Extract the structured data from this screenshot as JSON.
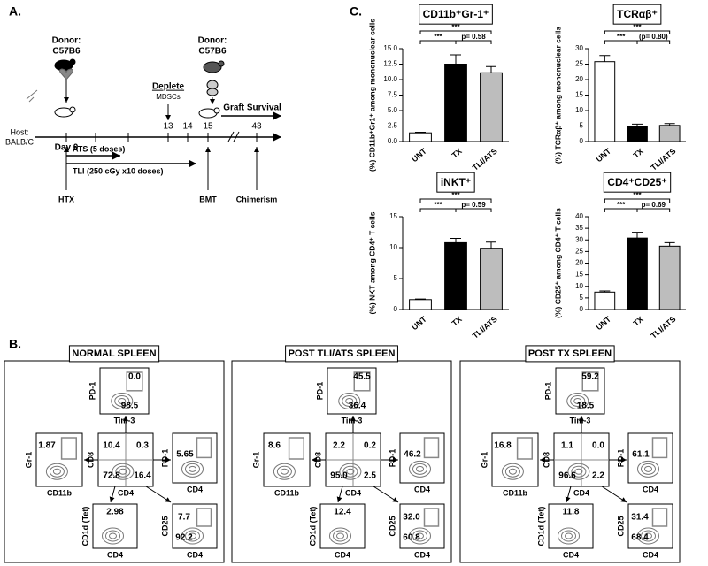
{
  "panel_labels": {
    "a": "A.",
    "b": "B.",
    "c": "C."
  },
  "timeline": {
    "donor1": {
      "label": "Donor:",
      "strain": "C57B6"
    },
    "host": {
      "label": "Host:",
      "strain": "BALB/C"
    },
    "day0": "Day 0",
    "deplete": "Deplete",
    "mdsc": "MDSCs",
    "days": [
      "13",
      "14",
      "15",
      "43"
    ],
    "donor2": {
      "label": "Donor:",
      "strain": "C57B6"
    },
    "graft": "Graft Survival",
    "ats": "ATS (5 doses)",
    "tli": "TLI (250 cGy x10 doses)",
    "events": [
      "HTX",
      "BMT",
      "Chimerism"
    ]
  },
  "chart_data": [
    {
      "type": "bar",
      "title": "CD11b⁺Gr-1⁺",
      "ylabel": "(%) CD11b⁺Gr1⁺ among mononuclear cells",
      "categories": [
        "UNT",
        "TX",
        "TLI/ATS"
      ],
      "values": [
        1.4,
        12.5,
        11.1
      ],
      "errors": [
        0.1,
        1.5,
        1.0
      ],
      "colors": [
        "#ffffff",
        "#000000",
        "#bdbdbd"
      ],
      "ylim": [
        0,
        15
      ],
      "yticks": [
        {
          "value": 0,
          "label": "0.0"
        },
        {
          "value": 2.5,
          "label": "2.5"
        },
        {
          "value": 5,
          "label": "5.0"
        },
        {
          "value": 7.5,
          "label": "7.5"
        },
        {
          "value": 10,
          "label": "10.0"
        },
        {
          "value": 12.5,
          "label": "12.5"
        },
        {
          "value": 15,
          "label": "15.0"
        }
      ],
      "annotations": [
        "***",
        "***",
        "p= 0.58"
      ]
    },
    {
      "type": "bar",
      "title": "TCRαβ⁺",
      "ylabel": "(%) TCRαβ⁺ among mononuclear cells",
      "categories": [
        "UNT",
        "TX",
        "TLI/ATS"
      ],
      "values": [
        25.8,
        4.8,
        5.2
      ],
      "errors": [
        2.0,
        0.8,
        0.6
      ],
      "colors": [
        "#ffffff",
        "#000000",
        "#bdbdbd"
      ],
      "ylim": [
        0,
        30
      ],
      "yticks": [
        0,
        5,
        10,
        15,
        20,
        25,
        30
      ],
      "annotations": [
        "***",
        "***",
        "(p= 0.80)"
      ]
    },
    {
      "type": "bar",
      "title": "iNKT⁺",
      "ylabel": "(%) NKT among CD4⁺ T cells",
      "categories": [
        "UNT",
        "TX",
        "TLI/ATS"
      ],
      "values": [
        1.6,
        10.8,
        9.9
      ],
      "errors": [
        0.1,
        0.7,
        1.0
      ],
      "colors": [
        "#ffffff",
        "#000000",
        "#bdbdbd"
      ],
      "ylim": [
        0,
        15
      ],
      "yticks": [
        0,
        5,
        10,
        15
      ],
      "annotations": [
        "***",
        "***",
        "p= 0.59"
      ]
    },
    {
      "type": "bar",
      "title": "CD4⁺CD25⁺",
      "ylabel": "(%) CD25⁺ among CD4⁺ T cells",
      "categories": [
        "UNT",
        "TX",
        "TLI/ATS"
      ],
      "values": [
        7.5,
        30.8,
        27.3
      ],
      "errors": [
        0.5,
        2.5,
        1.5
      ],
      "colors": [
        "#ffffff",
        "#000000",
        "#bdbdbd"
      ],
      "ylim": [
        0,
        40
      ],
      "yticks": [
        0,
        5,
        10,
        15,
        20,
        25,
        30,
        35,
        40
      ],
      "annotations": [
        "***",
        "***",
        "p= 0.69"
      ]
    }
  ],
  "flow": {
    "axis_labels": {
      "pd1": "PD-1",
      "tim3": "Tim-3",
      "gr1": "Gr-1",
      "cd11b": "CD11b",
      "cd8": "CD8",
      "cd4": "CD4",
      "cd1d": "CD1d (Tet)",
      "cd25": "CD25"
    },
    "groups": [
      {
        "title": "NORMAL SPLEEN",
        "pd1_tim3": [
          "0.0",
          "98.5"
        ],
        "gr1_cd11b": "1.87",
        "cd8_cd4": [
          "10.4",
          "0.3",
          "72.8",
          "16.4"
        ],
        "pd1_cd4": "5.65",
        "cd1d_cd4": "2.98",
        "cd25_cd4": [
          "7.7",
          "92.2"
        ]
      },
      {
        "title": "POST TLI/ATS SPLEEN",
        "pd1_tim3": [
          "45.5",
          "36.4"
        ],
        "gr1_cd11b": "8.6",
        "cd8_cd4": [
          "2.2",
          "0.2",
          "95.0",
          "2.5"
        ],
        "pd1_cd4": "46.2",
        "cd1d_cd4": "12.4",
        "cd25_cd4": [
          "32.0",
          "60.8"
        ]
      },
      {
        "title": "POST TX SPLEEN",
        "pd1_tim3": [
          "59.2",
          "18.5"
        ],
        "gr1_cd11b": "16.8",
        "cd8_cd4": [
          "1.1",
          "0.0",
          "96.6",
          "2.2"
        ],
        "pd1_cd4": "61.1",
        "cd1d_cd4": "11.8",
        "cd25_cd4": [
          "31.4",
          "68.4"
        ]
      }
    ]
  }
}
